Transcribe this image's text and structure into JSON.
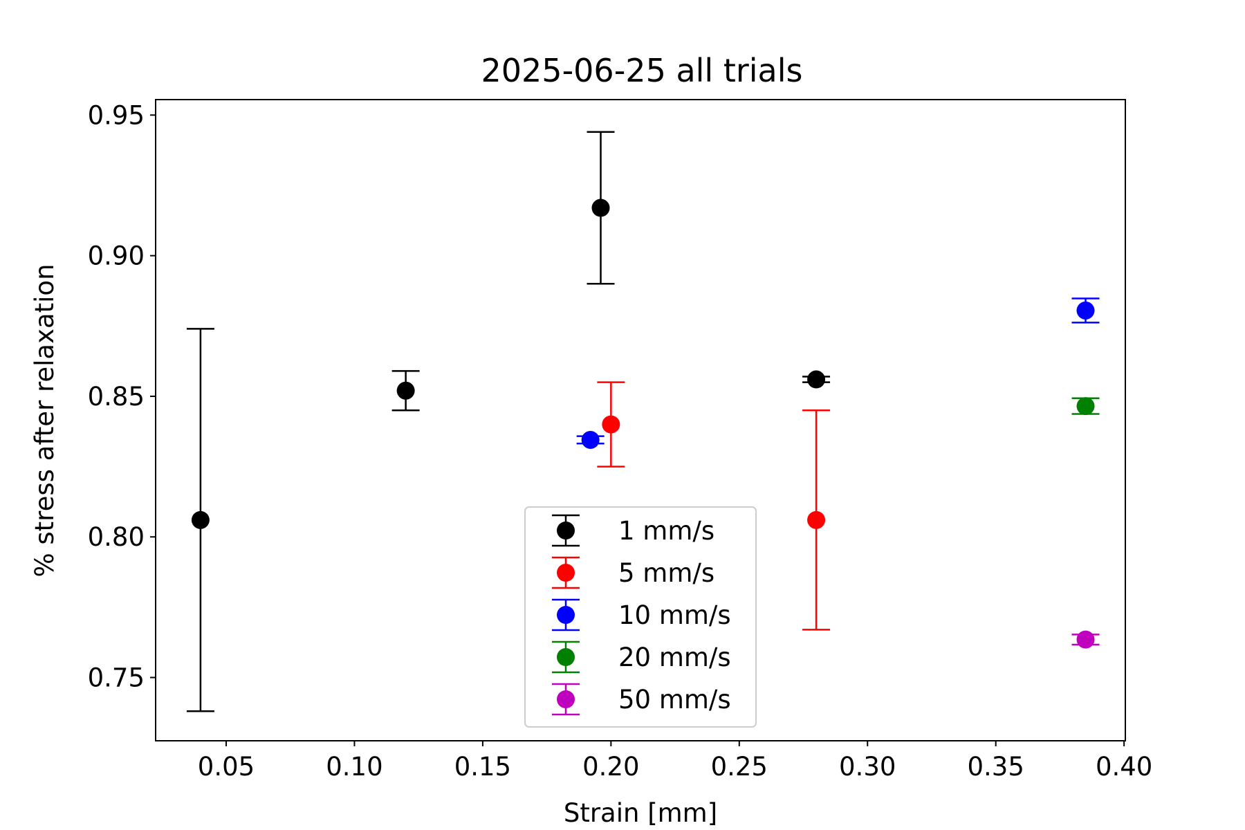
{
  "chart_data": {
    "type": "scatter",
    "title": "2025-06-25 all trials",
    "xlabel": "Strain [mm]",
    "ylabel": "% stress after relaxation",
    "xlim": [
      0.0225,
      0.4005
    ],
    "ylim": [
      0.7275,
      0.9555
    ],
    "xticks": [
      0.05,
      0.1,
      0.15,
      0.2,
      0.25,
      0.3,
      0.35,
      0.4
    ],
    "xtick_labels": [
      "0.05",
      "0.10",
      "0.15",
      "0.20",
      "0.25",
      "0.30",
      "0.35",
      "0.40"
    ],
    "yticks": [
      0.75,
      0.8,
      0.85,
      0.9,
      0.95
    ],
    "ytick_labels": [
      "0.75",
      "0.80",
      "0.85",
      "0.90",
      "0.95"
    ],
    "grid": false,
    "legend_position": "lower-center",
    "series": [
      {
        "name": "1 mm/s",
        "color": "#000000",
        "points": [
          {
            "x": 0.04,
            "y": 0.806,
            "yerr": 0.068
          },
          {
            "x": 0.12,
            "y": 0.852,
            "yerr": 0.007
          },
          {
            "x": 0.196,
            "y": 0.917,
            "yerr": 0.027
          },
          {
            "x": 0.28,
            "y": 0.856,
            "yerr": 0.001
          }
        ]
      },
      {
        "name": "5 mm/s",
        "color": "#ff0000",
        "points": [
          {
            "x": 0.2,
            "y": 0.84,
            "yerr": 0.015
          },
          {
            "x": 0.28,
            "y": 0.806,
            "yerr": 0.039
          }
        ]
      },
      {
        "name": "10 mm/s",
        "color": "#0000ff",
        "points": [
          {
            "x": 0.192,
            "y": 0.8345,
            "yerr": 0.0013
          },
          {
            "x": 0.385,
            "y": 0.8805,
            "yerr": 0.0043
          }
        ]
      },
      {
        "name": "20 mm/s",
        "color": "#008000",
        "points": [
          {
            "x": 0.385,
            "y": 0.8465,
            "yerr": 0.0028
          }
        ]
      },
      {
        "name": "50 mm/s",
        "color": "#bf00bf",
        "points": [
          {
            "x": 0.385,
            "y": 0.7635,
            "yerr": 0.0018
          }
        ]
      }
    ]
  }
}
